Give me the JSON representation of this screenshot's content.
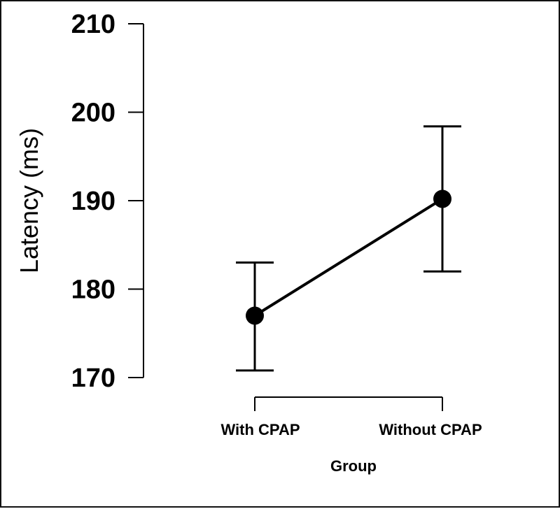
{
  "chart_data": {
    "type": "line",
    "categories": [
      "With CPAP",
      "Without CPAP"
    ],
    "series": [
      {
        "values": [
          177,
          190.2
        ],
        "error_low": [
          170.8,
          182
        ],
        "error_high": [
          183,
          198.4
        ]
      }
    ],
    "xlabel": "Group",
    "ylabel": "Latency (ms)",
    "ylim": [
      170,
      210
    ],
    "yticks": [
      170,
      180,
      190,
      200,
      210
    ],
    "grid": false,
    "line_color": "#000000",
    "marker_color": "#000000"
  }
}
